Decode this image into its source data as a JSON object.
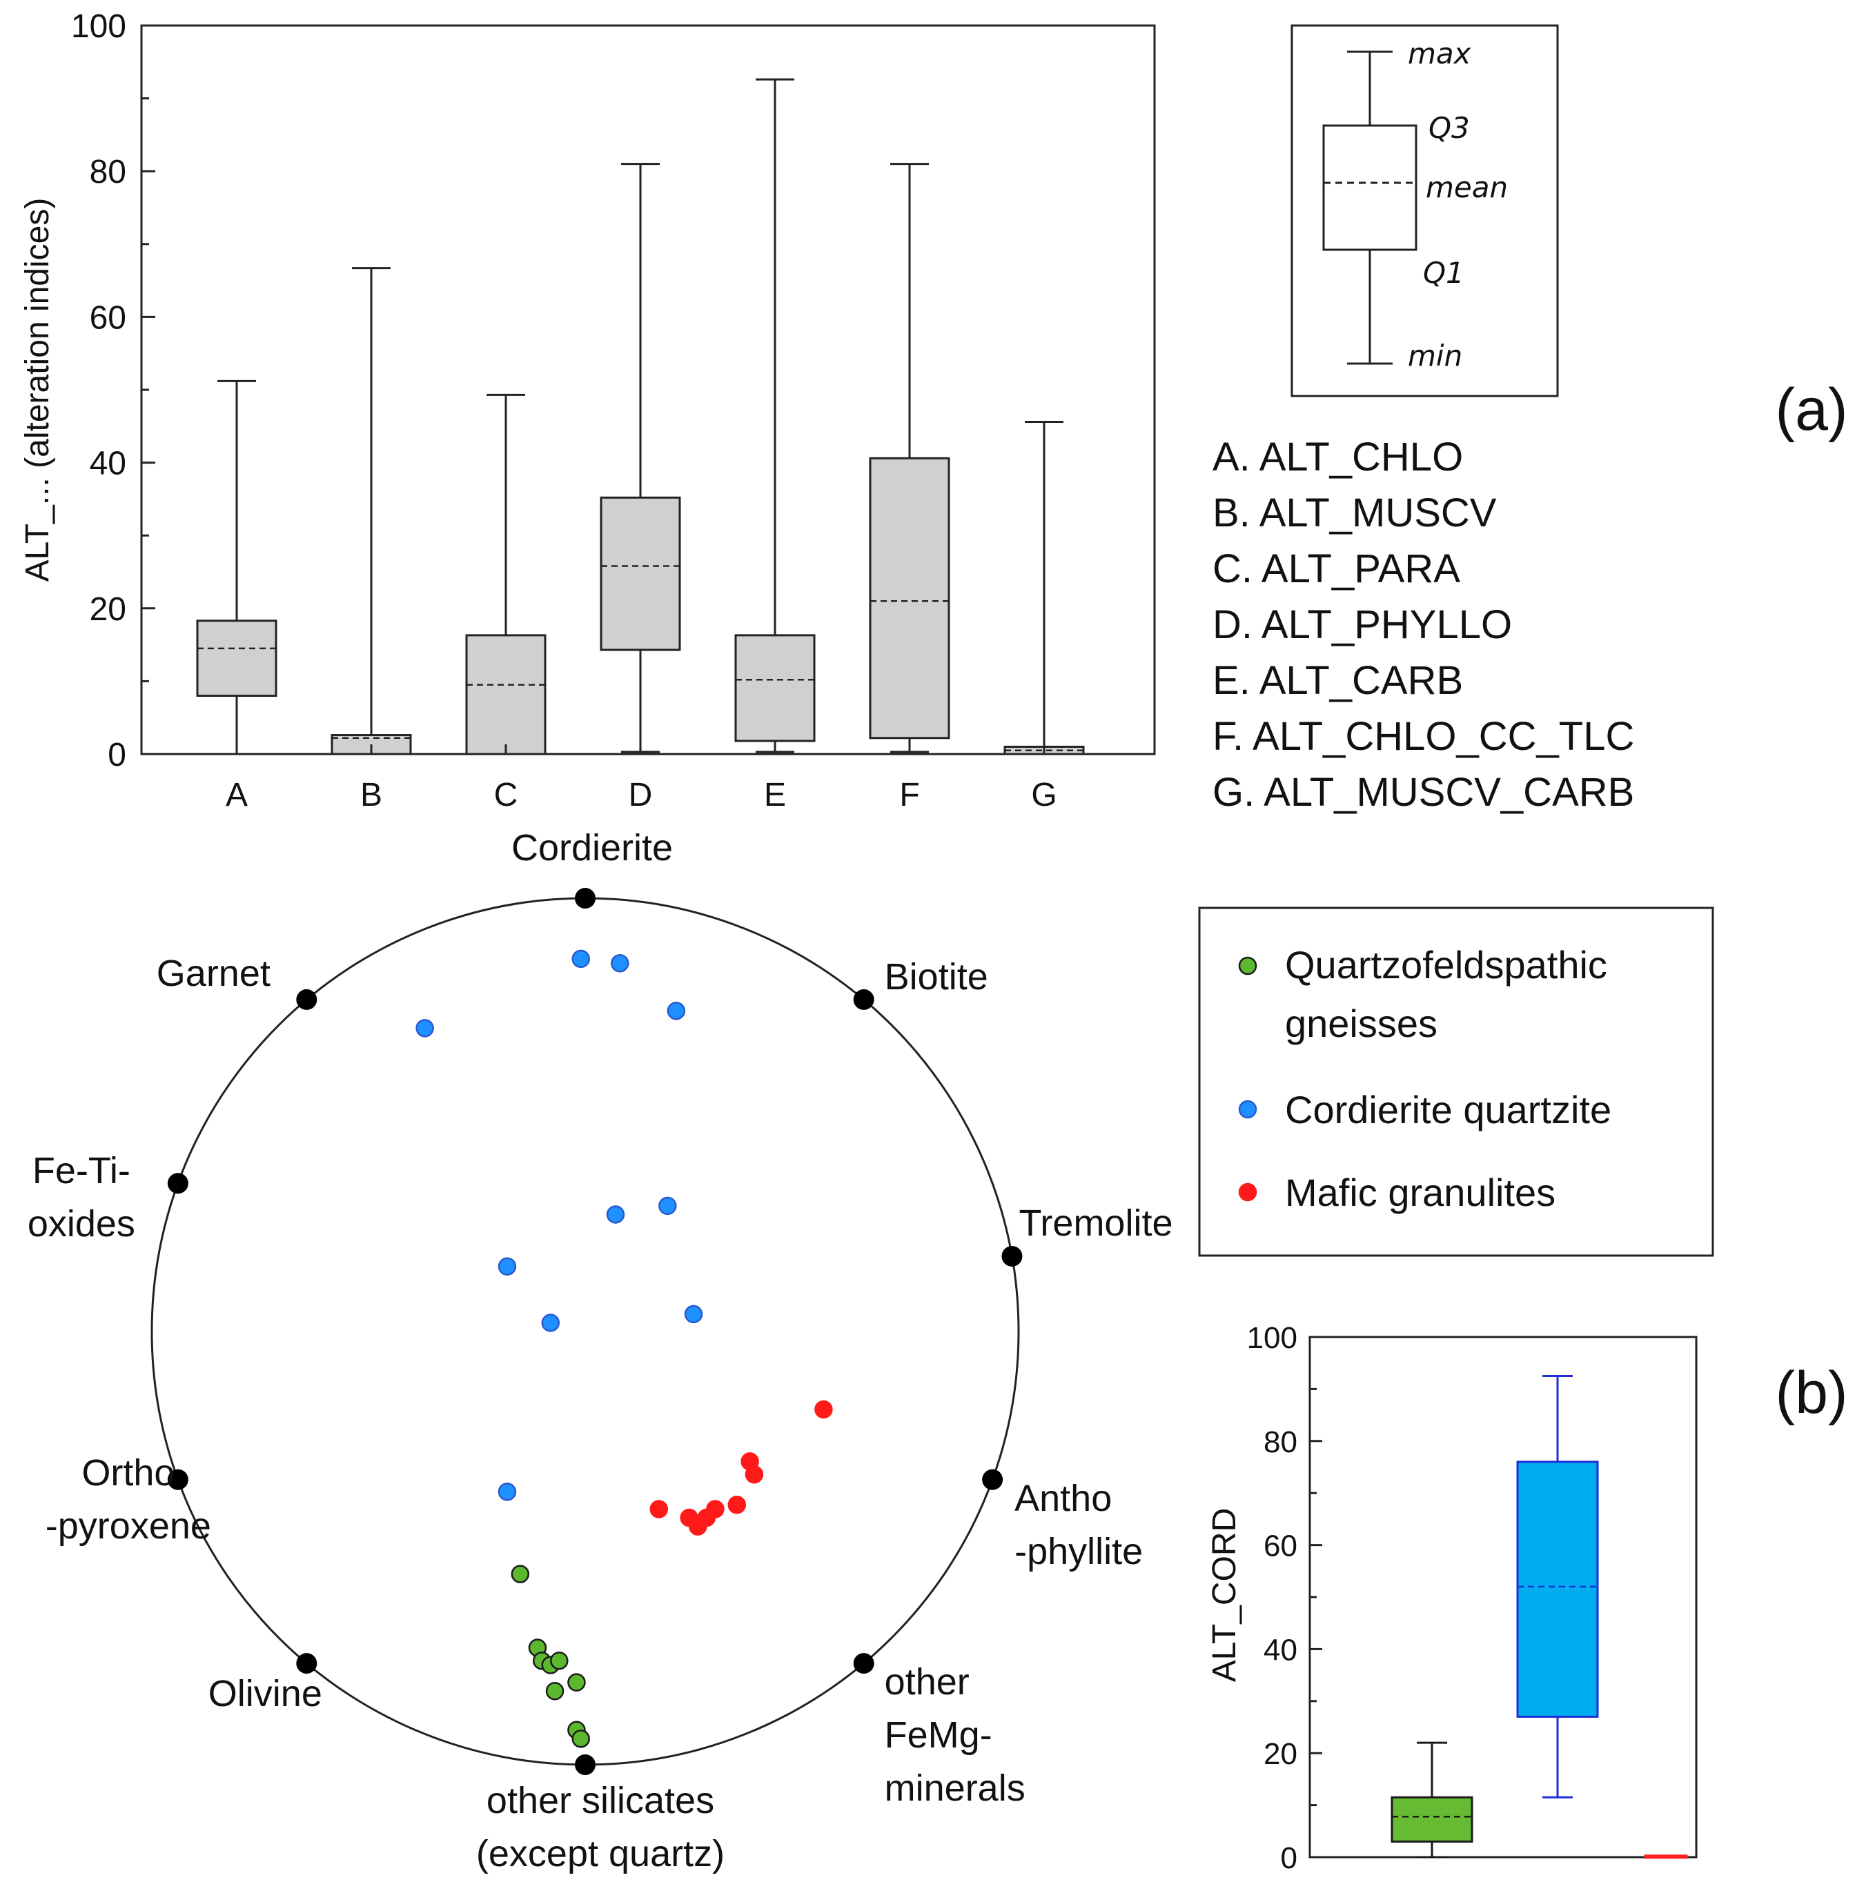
{
  "panel_tags": {
    "a": "(a)",
    "b": "(b)"
  },
  "box_key": {
    "max": "max",
    "q3": "Q3",
    "mean": "mean",
    "q1": "Q1",
    "min": "min"
  },
  "chart_data": [
    {
      "type": "box",
      "id": "a",
      "ylabel": "ALT_... (alteration indices)",
      "ylim": [
        0,
        100
      ],
      "yticks": [
        0,
        20,
        40,
        60,
        80,
        100
      ],
      "categories": [
        "A",
        "B",
        "C",
        "D",
        "E",
        "F",
        "G"
      ],
      "boxes": [
        {
          "cat": "A",
          "min": 0,
          "q1": 8,
          "mean": 14.5,
          "q3": 18.3,
          "max": 51.2
        },
        {
          "cat": "B",
          "min": 0,
          "q1": 0,
          "mean": 2.2,
          "q3": 2.6,
          "max": 66.7
        },
        {
          "cat": "C",
          "min": 0,
          "q1": 0,
          "mean": 9.5,
          "q3": 16.3,
          "max": 49.3
        },
        {
          "cat": "D",
          "min": 0.3,
          "q1": 14.3,
          "mean": 25.8,
          "q3": 35.2,
          "max": 81
        },
        {
          "cat": "E",
          "min": 0.3,
          "q1": 1.8,
          "mean": 10.2,
          "q3": 16.3,
          "max": 92.6
        },
        {
          "cat": "F",
          "min": 0.3,
          "q1": 2.2,
          "mean": 21,
          "q3": 40.6,
          "max": 81
        },
        {
          "cat": "G",
          "min": 0,
          "q1": 0,
          "mean": 0.5,
          "q3": 1.0,
          "max": 45.6
        }
      ],
      "legend": [
        "A. ALT_CHLO",
        "B. ALT_MUSCV",
        "C. ALT_PARA",
        "D. ALT_PHYLLO",
        "E. ALT_CARB",
        "F. ALT_CHLO_CC_TLC",
        "G. ALT_MUSCV_CARB"
      ]
    },
    {
      "type": "scatter",
      "subtype": "circular mineral diagram",
      "id": "b-circle",
      "vertices": [
        {
          "lines": [
            "Cordierite"
          ],
          "angle": 0
        },
        {
          "lines": [
            "Biotite"
          ],
          "angle": 40
        },
        {
          "lines": [
            "Tremolite"
          ],
          "angle": 80
        },
        {
          "lines": [
            "Antho",
            "-phyllite"
          ],
          "angle": 110
        },
        {
          "lines": [
            "other",
            "FeMg-",
            "minerals"
          ],
          "angle": 140
        },
        {
          "lines": [
            "other silicates",
            "(except quartz)"
          ],
          "angle": 180
        },
        {
          "lines": [
            "Olivine"
          ],
          "angle": 220
        },
        {
          "lines": [
            "Ortho",
            "-pyroxene"
          ],
          "angle": 250
        },
        {
          "lines": [
            "Fe-Ti-",
            "oxides"
          ],
          "angle": 290
        },
        {
          "lines": [
            "Garnet"
          ],
          "angle": 320
        }
      ],
      "series": [
        {
          "name_lines": [
            "Quartzofeldspathic",
            "gneisses"
          ],
          "color": "#5cb82e",
          "outline": "#1a1a1a",
          "points": [
            [
              -0.15,
              -0.56
            ],
            [
              -0.11,
              -0.73
            ],
            [
              -0.1,
              -0.76
            ],
            [
              -0.08,
              -0.77
            ],
            [
              -0.06,
              -0.76
            ],
            [
              -0.07,
              -0.83
            ],
            [
              -0.02,
              -0.81
            ],
            [
              -0.02,
              -0.92
            ],
            [
              -0.01,
              -0.94
            ]
          ]
        },
        {
          "name": "Cordierite quartzite",
          "color": "#1e90ff",
          "outline": "#2a5ad0",
          "points": [
            [
              -0.01,
              0.86
            ],
            [
              0.08,
              0.85
            ],
            [
              0.21,
              0.74
            ],
            [
              -0.37,
              0.7
            ],
            [
              0.19,
              0.29
            ],
            [
              0.07,
              0.27
            ],
            [
              -0.18,
              0.15
            ],
            [
              0.25,
              0.04
            ],
            [
              -0.08,
              0.02
            ],
            [
              -0.18,
              -0.37
            ]
          ]
        },
        {
          "name": "Mafic granulites",
          "color": "#ff1a1a",
          "outline": "#ff1a1a",
          "points": [
            [
              0.55,
              -0.18
            ],
            [
              0.38,
              -0.3
            ],
            [
              0.39,
              -0.33
            ],
            [
              0.35,
              -0.4
            ],
            [
              0.3,
              -0.41
            ],
            [
              0.17,
              -0.41
            ],
            [
              0.24,
              -0.43
            ],
            [
              0.28,
              -0.43
            ],
            [
              0.26,
              -0.45
            ]
          ]
        }
      ]
    },
    {
      "type": "box",
      "id": "b-box",
      "ylabel": "ALT_CORD",
      "ylim": [
        0,
        100
      ],
      "yticks": [
        0,
        20,
        40,
        60,
        80,
        100
      ],
      "boxes": [
        {
          "min": 0,
          "q1": 3,
          "mean": 7.8,
          "q3": 11.5,
          "max": 22,
          "fill": "#66bb33",
          "stroke": "#1a1a1a"
        },
        {
          "min": 11.5,
          "q1": 27,
          "mean": 52,
          "q3": 76,
          "max": 92.5,
          "fill": "#00aeef",
          "stroke": "#1f2fd6"
        },
        {
          "min": 0,
          "q1": 0,
          "mean": 0,
          "q3": 0.3,
          "max": 0.3,
          "fill": "#ff2020",
          "stroke": "#ff2020"
        }
      ]
    }
  ]
}
